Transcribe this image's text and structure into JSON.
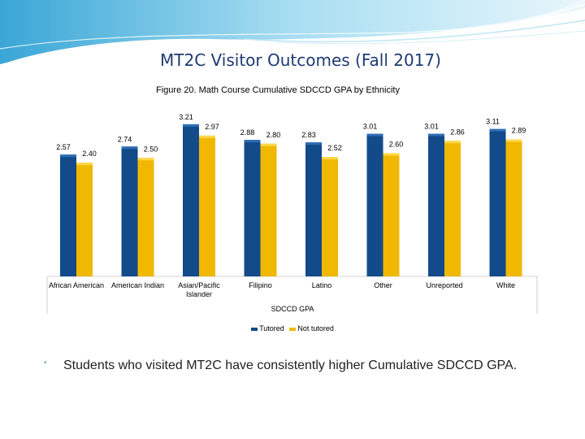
{
  "slide": {
    "title": "MT2C Visitor Outcomes (Fall 2017)",
    "bullet": "Students who visited MT2C have consistently higher Cumulative SDCCD GPA."
  },
  "colors": {
    "tutored": "#124a8a",
    "not_tutored": "#f0b800",
    "title": "#1f3a73"
  },
  "chart_data": {
    "type": "bar",
    "title": "Figure 20. Math Course Cumulative SDCCD GPA by Ethnicity",
    "xlabel": "SDCCD GPA",
    "ylabel": "",
    "categories": [
      "African American",
      "American Indian",
      "Asian/Pacific Islander",
      "Filipino",
      "Latino",
      "Other",
      "Unreported",
      "White"
    ],
    "series": [
      {
        "name": "Tutored",
        "values": [
          2.57,
          2.74,
          3.21,
          2.88,
          2.83,
          3.01,
          3.01,
          3.11
        ],
        "labels": [
          "2.57",
          "2.74",
          "3.21",
          "2.88",
          "2.83",
          "3.01",
          "3.01",
          "3.11"
        ]
      },
      {
        "name": "Not tutored",
        "values": [
          2.4,
          2.5,
          2.97,
          2.8,
          2.52,
          2.6,
          2.86,
          2.89
        ],
        "labels": [
          "2.40",
          "2.50",
          "2.97",
          "2.80",
          "2.52",
          "2.60",
          "2.86",
          "2.89"
        ]
      }
    ],
    "ylim": [
      0,
      3.4
    ],
    "grid": false,
    "legend": "bottom"
  }
}
